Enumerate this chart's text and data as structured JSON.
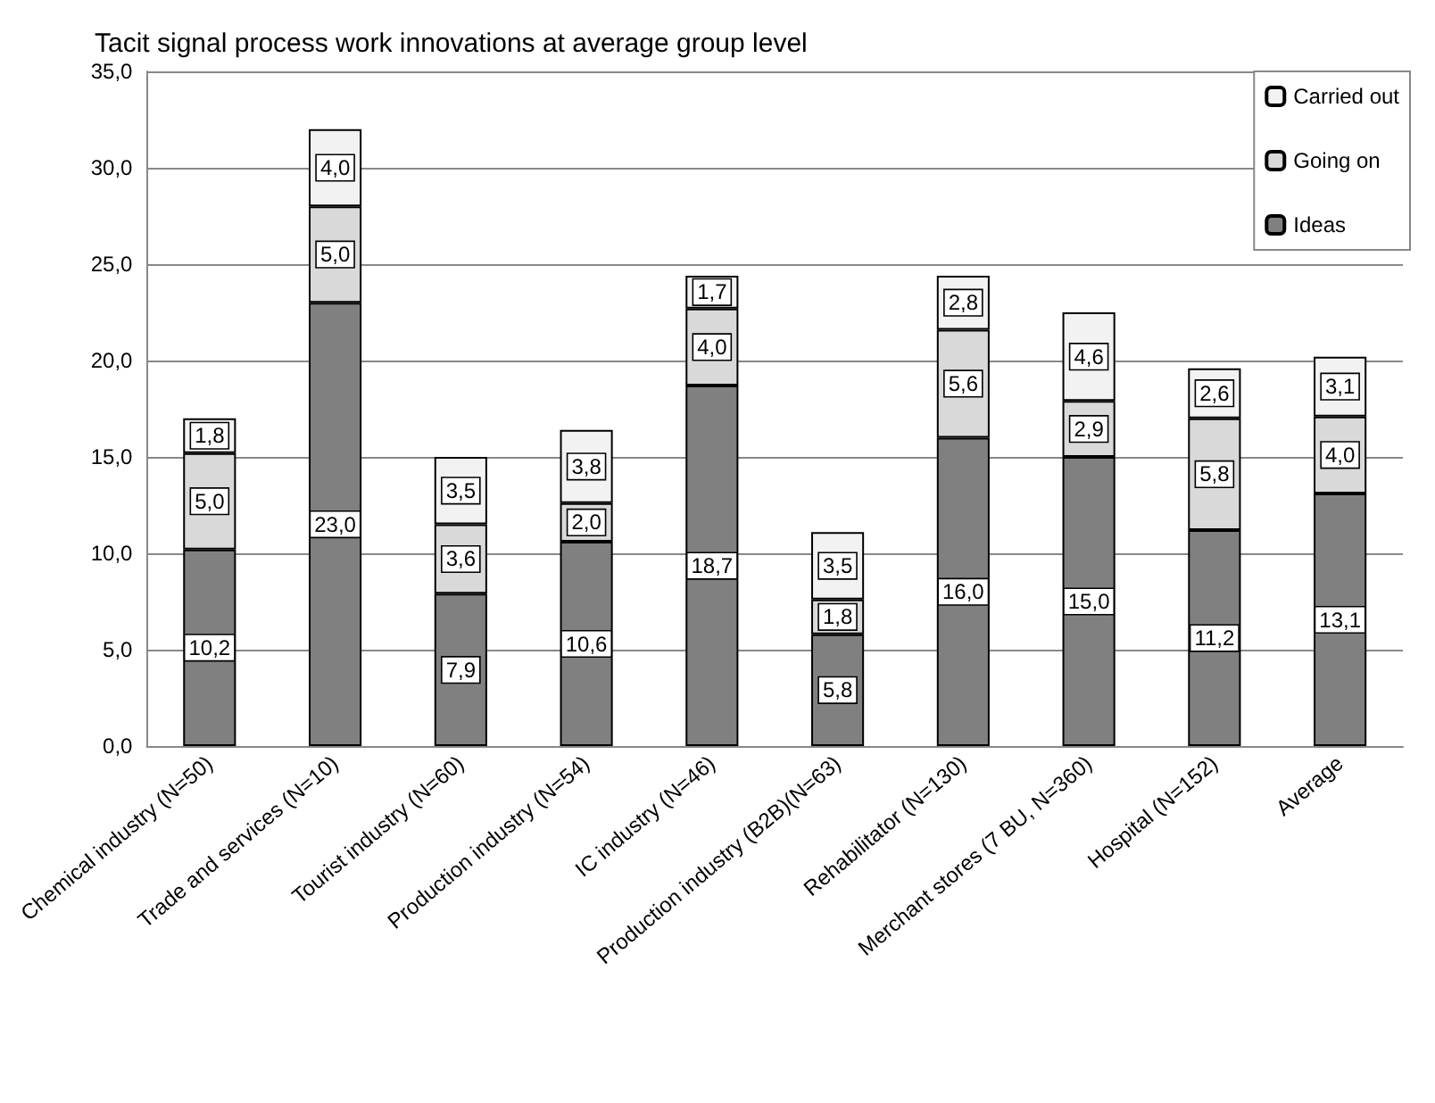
{
  "chart_data": {
    "type": "bar",
    "title": "Tacit signal process work innovations at average group level",
    "categories": [
      "Chemical industry (N=50)",
      "Trade and services (N=10)",
      "Tourist industry (N=60)",
      "Production industry (N=54)",
      "IC industry (N=46)",
      "Production industry (B2B)(N=63)",
      "Rehabilitator (N=130)",
      "Merchant stores (7 BU, N=360)",
      "Hospital (N=152)",
      "Average"
    ],
    "stacked": true,
    "series": [
      {
        "name": "Ideas",
        "color": "#808080",
        "values": [
          10.2,
          23.0,
          7.9,
          10.6,
          18.7,
          5.8,
          16.0,
          15.0,
          11.2,
          13.1
        ],
        "value_labels": [
          "10,2",
          "23,0",
          "7,9",
          "10,6",
          "18,7",
          "5,8",
          "16,0",
          "15,0",
          "11,2",
          "13,1"
        ]
      },
      {
        "name": "Going on",
        "color": "#d9d9d9",
        "values": [
          5.0,
          5.0,
          3.6,
          2.0,
          4.0,
          1.8,
          5.6,
          2.9,
          5.8,
          4.0
        ],
        "value_labels": [
          "5,0",
          "5,0",
          "3,6",
          "2,0",
          "4,0",
          "1,8",
          "5,6",
          "2,9",
          "5,8",
          "4,0"
        ]
      },
      {
        "name": "Carried out",
        "color": "#f2f2f2",
        "values": [
          1.8,
          4.0,
          3.5,
          3.8,
          1.7,
          3.5,
          2.8,
          4.6,
          2.6,
          3.1
        ],
        "value_labels": [
          "1,8",
          "4,0",
          "3,5",
          "3,8",
          "1,7",
          "3,5",
          "2,8",
          "4,6",
          "2,6",
          "3,1"
        ]
      }
    ],
    "ylim": [
      0,
      35
    ],
    "yticks": [
      {
        "value": 0,
        "label": "0,0"
      },
      {
        "value": 5,
        "label": "5,0"
      },
      {
        "value": 10,
        "label": "10,0"
      },
      {
        "value": 15,
        "label": "15,0"
      },
      {
        "value": 20,
        "label": "20,0"
      },
      {
        "value": 25,
        "label": "25,0"
      },
      {
        "value": 30,
        "label": "30,0"
      },
      {
        "value": 35,
        "label": "35,0"
      }
    ],
    "grid": "y",
    "legend": "top right"
  }
}
